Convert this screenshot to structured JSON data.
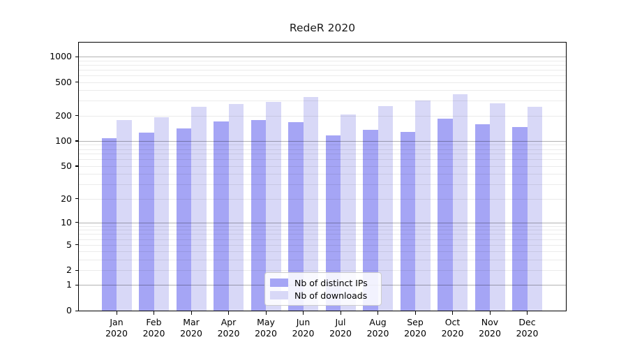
{
  "chart_data": {
    "type": "bar",
    "title": "RedeR 2020",
    "categories": [
      "Jan",
      "Feb",
      "Mar",
      "Apr",
      "May",
      "Jun",
      "Jul",
      "Aug",
      "Sep",
      "Oct",
      "Nov",
      "Dec"
    ],
    "category_year": "2020",
    "series": [
      {
        "name": "Nb of distinct IPs",
        "color": "#a5a5f5",
        "values": [
          108,
          125,
          140,
          172,
          176,
          168,
          116,
          135,
          127,
          183,
          159,
          146
        ]
      },
      {
        "name": "Nb of downloads",
        "color": "#d8d8f7",
        "values": [
          178,
          192,
          254,
          275,
          289,
          333,
          205,
          260,
          304,
          356,
          280,
          256
        ]
      }
    ],
    "yscale": "log1p",
    "yticks": [
      1000,
      500,
      200,
      100,
      50,
      20,
      10,
      5,
      2,
      1,
      0
    ],
    "ylim": [
      0,
      1465
    ],
    "grid": "on",
    "legend_position": "lower-center",
    "colors": {
      "axis": "#000000",
      "major_grid": "#b0b0b0",
      "minor_grid": "#ebebeb",
      "text": "#000000",
      "legend_bg": "#ffffff",
      "legend_border": "#cccccc"
    }
  }
}
